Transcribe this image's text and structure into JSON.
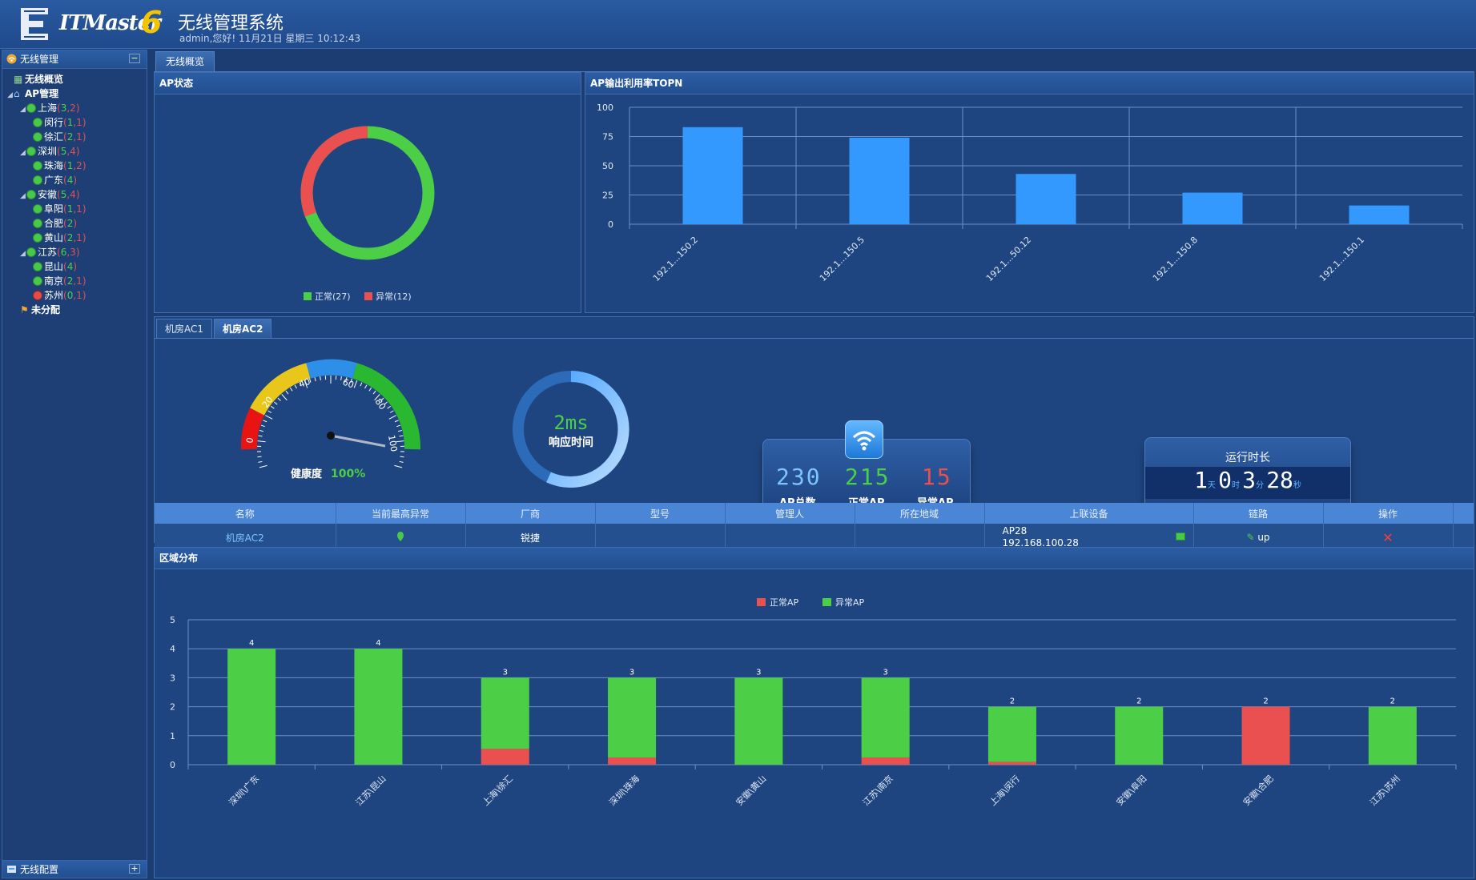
{
  "header": {
    "logo_text": "ITMaster",
    "logo_version": "6",
    "title": "无线管理系统",
    "user_line": "admin,您好! 11月21日 星期三 10:12:43"
  },
  "sidebar": {
    "title": "无线管理",
    "collapse": "−",
    "items": [
      {
        "label": "无线概览"
      },
      {
        "label": "AP管理"
      },
      {
        "label": "上海",
        "a": "3",
        "b": "2"
      },
      {
        "label": "闵行",
        "a": "1",
        "b": "1"
      },
      {
        "label": "徐汇",
        "a": "2",
        "b": "1"
      },
      {
        "label": "深圳",
        "a": "5",
        "b": "4"
      },
      {
        "label": "珠海",
        "a": "1",
        "b": "2"
      },
      {
        "label": "广东",
        "a": "4",
        "b": ""
      },
      {
        "label": "安徽",
        "a": "5",
        "b": "4"
      },
      {
        "label": "阜阳",
        "a": "1",
        "b": "1"
      },
      {
        "label": "合肥",
        "a": "2",
        "b": ""
      },
      {
        "label": "黄山",
        "a": "2",
        "b": "1"
      },
      {
        "label": "江苏",
        "a": "6",
        "b": "3"
      },
      {
        "label": "昆山",
        "a": "4",
        "b": ""
      },
      {
        "label": "南京",
        "a": "2",
        "b": "1"
      },
      {
        "label": "苏州",
        "a": "0",
        "b": "1"
      },
      {
        "label": "未分配"
      }
    ],
    "footer": "无线配置",
    "footer_toggle": "+"
  },
  "tabs": {
    "overview": "无线概览"
  },
  "ap_status": {
    "title": "AP状态",
    "legend_normal": "正常(27)",
    "legend_abnormal": "异常(12)",
    "normal": 27,
    "abnormal": 12,
    "colors": {
      "normal": "#4ccf47",
      "abnormal": "#e9504f"
    }
  },
  "chart_data": [
    {
      "type": "bar",
      "title": "AP输出利用率TOPN",
      "categories": [
        "192.1...150.2",
        "192.1...150.5",
        "192.1...50.12",
        "192.1...150.8",
        "192.1...150.1"
      ],
      "values": [
        83,
        74,
        43,
        27,
        16
      ],
      "ylim": [
        0,
        100
      ],
      "yticks": [
        0,
        25,
        50,
        75,
        100
      ],
      "color": "#3399ff",
      "grid": true
    },
    {
      "type": "bar",
      "title": "区域分布",
      "stacked": true,
      "categories": [
        "深圳\\广东",
        "江苏\\昆山",
        "上海\\徐汇",
        "深圳\\珠海",
        "安徽\\黄山",
        "江苏\\南京",
        "上海\\闵行",
        "安徽\\阜阳",
        "安徽\\合肥",
        "江苏\\苏州"
      ],
      "series": [
        {
          "name": "正常AP",
          "color": "#e9504f",
          "values": [
            0,
            0,
            0.55,
            0.25,
            0,
            0.25,
            0.1,
            0,
            2,
            0
          ]
        },
        {
          "name": "异常AP",
          "color": "#4ccf47",
          "values": [
            4,
            4,
            2.45,
            2.75,
            3,
            2.75,
            1.9,
            2,
            0,
            2
          ]
        }
      ],
      "totals": [
        "4",
        "4",
        "3",
        "3",
        "3",
        "3",
        "2",
        "2",
        "2",
        "2"
      ],
      "ylim": [
        0,
        5
      ],
      "yticks": [
        0,
        1,
        2,
        3,
        4,
        5
      ],
      "legend": "top-center",
      "grid": true
    }
  ],
  "ac_tabs": [
    "机房AC1",
    "机房AC2"
  ],
  "gauge": {
    "ticks": [
      "0",
      "20",
      "40",
      "60",
      "80",
      "100"
    ],
    "label": "健康度",
    "value_text": "100%",
    "value": 100
  },
  "response": {
    "value": "2ms",
    "label": "响应时间"
  },
  "ap_counts": {
    "total": "230",
    "total_label": "AP总数",
    "normal": "215",
    "normal_label": "正常AP",
    "abnormal": "15",
    "abnormal_label": "异常AP"
  },
  "uptime": {
    "title": "运行时长",
    "days": "1",
    "days_unit": "天",
    "hours": "0",
    "hours_unit": "时",
    "minutes": "3",
    "minutes_unit": "分",
    "seconds": "28",
    "seconds_unit": "秒"
  },
  "table": {
    "headers": [
      "名称",
      "当前最高异常",
      "厂商",
      "型号",
      "管理人",
      "所在地域",
      "上联设备",
      "链路",
      "操作"
    ],
    "row": {
      "name": "机房AC2",
      "vendor": "锐捷",
      "model": "",
      "manager": "",
      "region": "",
      "uplink_name": "AP28",
      "uplink_ip": "192.168.100.28",
      "link": "up"
    }
  }
}
